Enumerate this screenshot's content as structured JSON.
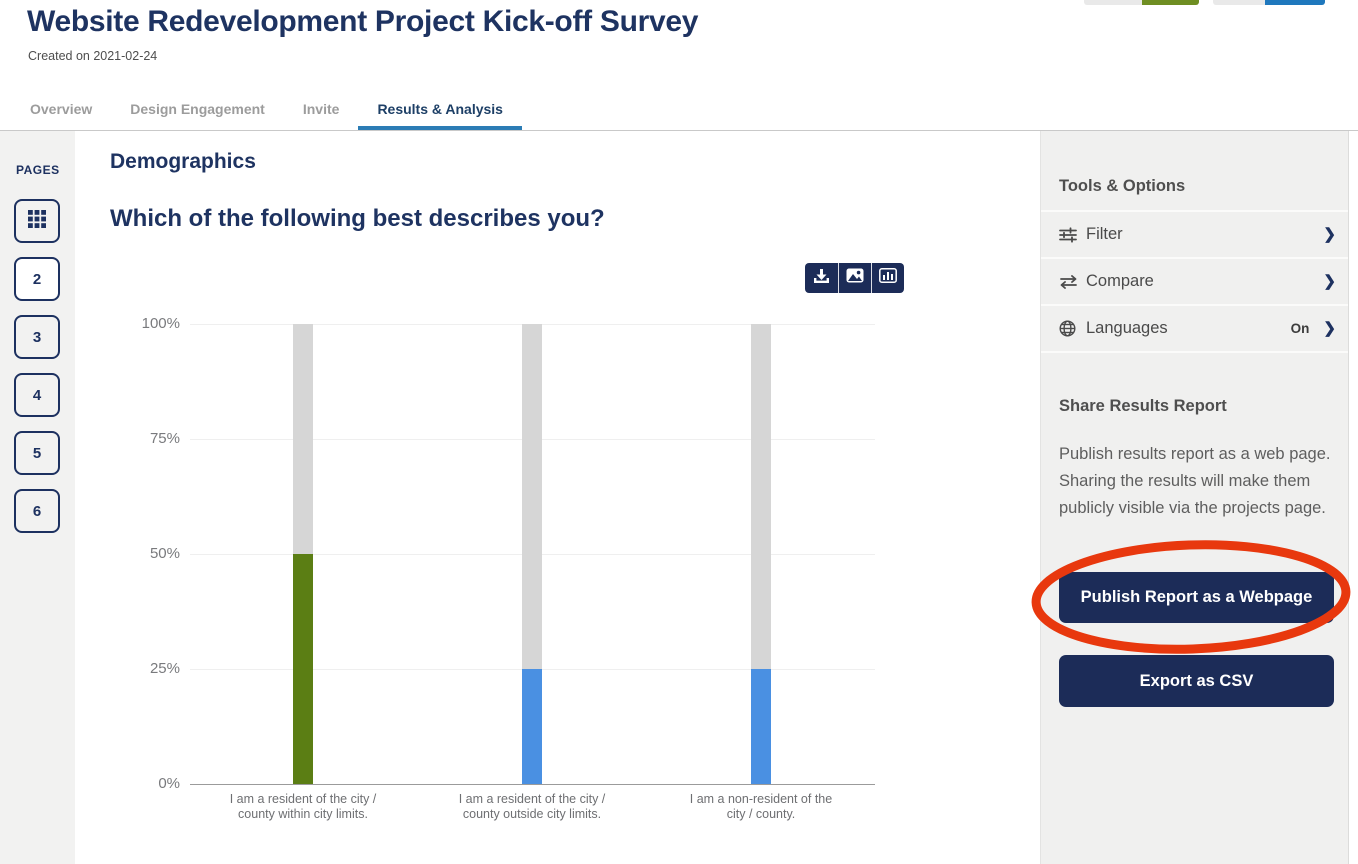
{
  "colors": {
    "navy_heading": "#1e3361",
    "button_navy": "#1c2c58",
    "tab_underline_blue": "#2b7cb5",
    "annotation_red": "#e8380e",
    "panel_background": "#f0f0ef"
  },
  "header": {
    "title": "Website Redevelopment Project Kick-off Survey",
    "created_on": "Created on 2021-02-24",
    "tabs": [
      {
        "label": "Overview",
        "active": false
      },
      {
        "label": "Design Engagement",
        "active": false
      },
      {
        "label": "Invite",
        "active": false
      },
      {
        "label": "Results & Analysis",
        "active": true
      }
    ],
    "top_pills": [
      {
        "left_color": "#e9e9e9",
        "right_color": "#6f8e22"
      },
      {
        "left_color": "#e9e9e9",
        "right_color": "#1f78bd"
      }
    ]
  },
  "pages_sidebar": {
    "label": "PAGES",
    "buttons": [
      {
        "type": "icon",
        "icon": "grid-icon",
        "label": "",
        "active": false
      },
      {
        "type": "number",
        "label": "2",
        "active": true
      },
      {
        "type": "number",
        "label": "3",
        "active": false
      },
      {
        "type": "number",
        "label": "4",
        "active": false
      },
      {
        "type": "number",
        "label": "5",
        "active": false
      },
      {
        "type": "number",
        "label": "6",
        "active": false
      }
    ]
  },
  "main": {
    "section_title": "Demographics",
    "question_title": "Which of the following best describes you?",
    "chart_toolbar_icons": [
      "download-icon",
      "image-icon",
      "bar-chart-icon"
    ]
  },
  "chart_data": {
    "type": "bar",
    "title": "Which of the following best describes you?",
    "categories": [
      "I am a resident of the city /\ncounty within city limits.",
      "I am a resident of the city /\ncounty outside city limits.",
      "I am a non-resident of the\ncity / county."
    ],
    "values": [
      50,
      25,
      25
    ],
    "unit": "%",
    "bar_colors": [
      "#5b7e14",
      "#4a90e2",
      "#4a90e2"
    ],
    "background_bar_color": "#d6d6d6",
    "y_ticks": [
      "100%",
      "75%",
      "50%",
      "25%",
      "0%"
    ],
    "y_tick_values": [
      100,
      75,
      50,
      25,
      0
    ],
    "ylim": [
      0,
      100
    ],
    "grid": true,
    "legend": false
  },
  "tools_panel": {
    "title": "Tools & Options",
    "items": [
      {
        "icon": "filter-icon",
        "label": "Filter",
        "value": ""
      },
      {
        "icon": "compare-icon",
        "label": "Compare",
        "value": ""
      },
      {
        "icon": "globe-icon",
        "label": "Languages",
        "value": "On"
      }
    ]
  },
  "share_panel": {
    "title": "Share Results Report",
    "description": "Publish results report as a web page. Sharing the results will make them publicly visible via the projects page.",
    "publish_button_label": "Publish Report as a Webpage",
    "export_button_label": "Export as CSV"
  },
  "annotation": {
    "type": "ellipse",
    "target": "publish-report-button",
    "color": "#e8380e"
  }
}
